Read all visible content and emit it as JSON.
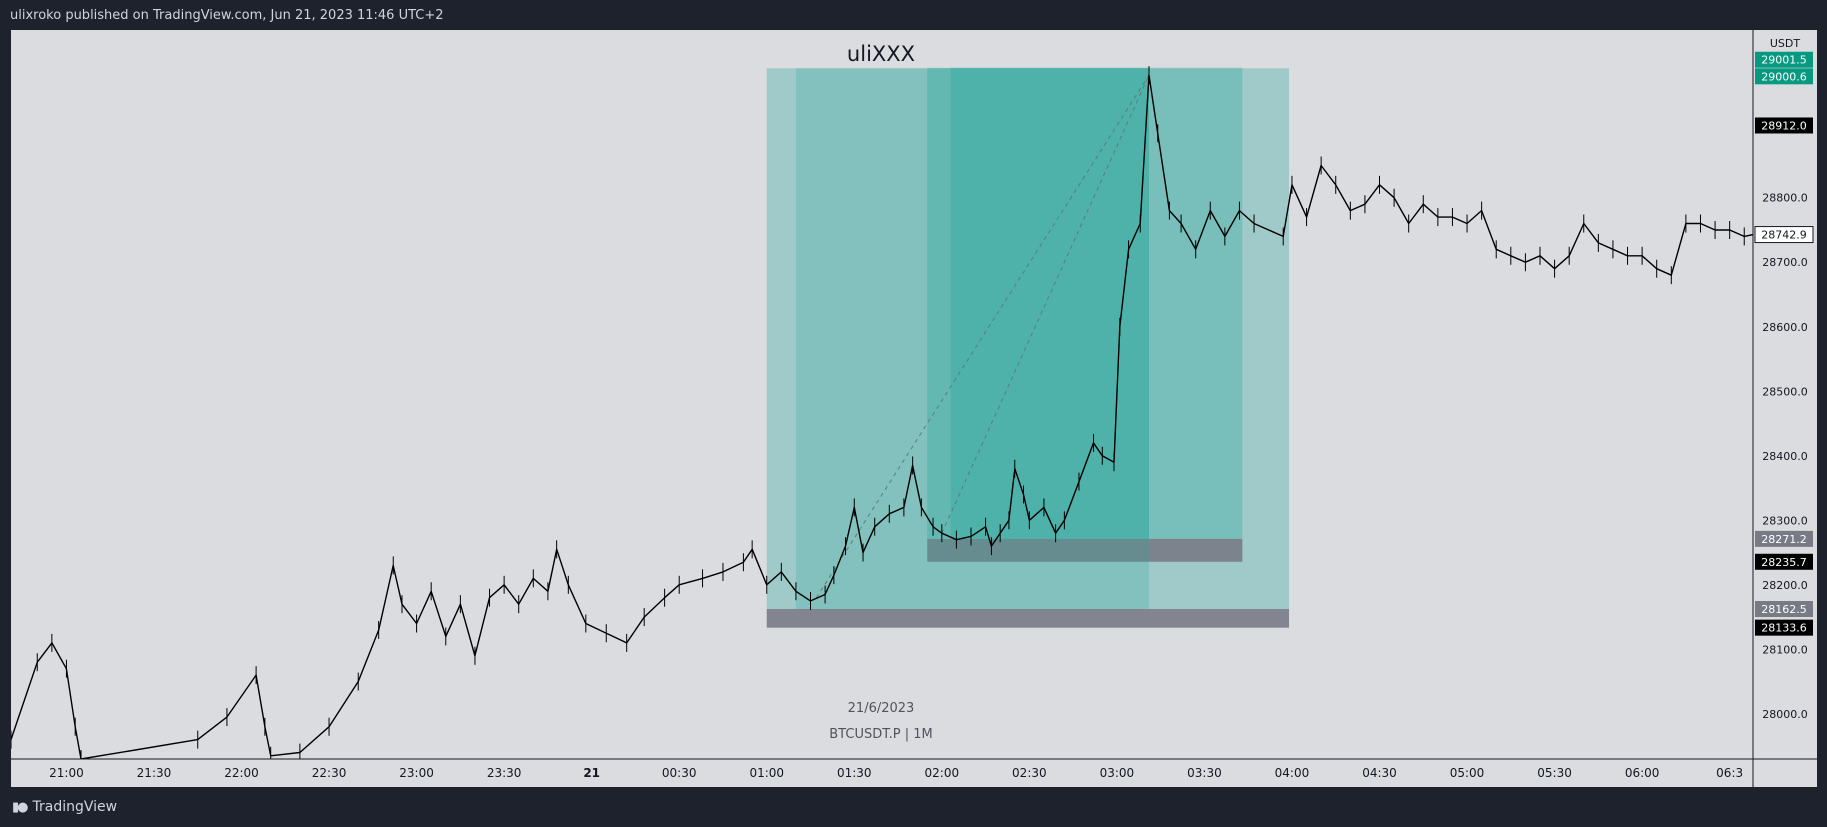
{
  "header": {
    "published": "ulixroko published on TradingView.com, Jun 21, 2023 11:46 UTC+2"
  },
  "footer": {
    "brand": "TradingView",
    "logo_icon": "tradingview-logo-icon"
  },
  "overlay": {
    "watermark": "uliXXX",
    "date_label": "21/6/2023",
    "symbol_label": "BTCUSDT.P | 1M"
  },
  "colors": {
    "background": "#dbdcdf",
    "candle": "#000000",
    "profit_zone": "#26a69a",
    "stop_zone": "#787b86",
    "chrome": "#1e222d",
    "tp_label": "#089981"
  },
  "price_axis": {
    "currency": "USDT",
    "ticks": [
      "28000.0",
      "28100.0",
      "28200.0",
      "28300.0",
      "28400.0",
      "28500.0",
      "28600.0",
      "28700.0",
      "28800.0"
    ],
    "badges": [
      {
        "text": "29001.5",
        "price": 29001.5,
        "style": "green"
      },
      {
        "text": "29000.6",
        "price": 29000.6,
        "style": "green"
      },
      {
        "text": "28912.0",
        "price": 28912.0,
        "style": "black"
      },
      {
        "text": "28742.9",
        "price": 28742.9,
        "style": "white"
      },
      {
        "text": "28271.2",
        "price": 28271.2,
        "style": "gray"
      },
      {
        "text": "28235.7",
        "price": 28235.7,
        "style": "black"
      },
      {
        "text": "28162.5",
        "price": 28162.5,
        "style": "gray"
      },
      {
        "text": "28133.6",
        "price": 28133.6,
        "style": "black"
      }
    ]
  },
  "chart_data": {
    "type": "candlestick",
    "xlabel": "",
    "ylabel": "",
    "x_ticks": [
      "21:00",
      "21:30",
      "22:00",
      "22:30",
      "23:00",
      "23:30",
      "21",
      "00:30",
      "01:00",
      "01:30",
      "02:00",
      "02:30",
      "03:00",
      "03:30",
      "04:00",
      "04:30",
      "05:00",
      "05:30",
      "06:00",
      "06:3"
    ],
    "x_range": [
      "20:41",
      "06:38"
    ],
    "ylim": [
      27930,
      29060
    ],
    "series": [
      {
        "values": [
          [
            "20:41",
            27960
          ],
          [
            "20:50",
            28080
          ],
          [
            "20:55",
            28110
          ],
          [
            "21:00",
            28070
          ],
          [
            "21:03",
            27980
          ],
          [
            "21:05",
            27930
          ],
          [
            "21:45",
            27960
          ],
          [
            "21:55",
            27995
          ],
          [
            "22:05",
            28060
          ],
          [
            "22:08",
            27980
          ],
          [
            "22:10",
            27935
          ],
          [
            "22:20",
            27940
          ],
          [
            "22:30",
            27980
          ],
          [
            "22:40",
            28050
          ],
          [
            "22:47",
            28130
          ],
          [
            "22:52",
            28230
          ],
          [
            "22:55",
            28170
          ],
          [
            "23:00",
            28140
          ],
          [
            "23:05",
            28190
          ],
          [
            "23:10",
            28120
          ],
          [
            "23:15",
            28170
          ],
          [
            "23:20",
            28090
          ],
          [
            "23:25",
            28180
          ],
          [
            "23:30",
            28200
          ],
          [
            "23:35",
            28170
          ],
          [
            "23:40",
            28210
          ],
          [
            "23:45",
            28190
          ],
          [
            "23:48",
            28255
          ],
          [
            "23:52",
            28200
          ],
          [
            "23:58",
            28140
          ],
          [
            "00:05",
            28125
          ],
          [
            "00:12",
            28110
          ],
          [
            "00:18",
            28150
          ],
          [
            "00:25",
            28180
          ],
          [
            "00:30",
            28200
          ],
          [
            "00:38",
            28210
          ],
          [
            "00:45",
            28220
          ],
          [
            "00:52",
            28235
          ],
          [
            "00:55",
            28255
          ],
          [
            "01:00",
            28200
          ],
          [
            "01:05",
            28220
          ],
          [
            "01:10",
            28190
          ],
          [
            "01:15",
            28175
          ],
          [
            "01:20",
            28185
          ],
          [
            "01:23",
            28215
          ],
          [
            "01:27",
            28260
          ],
          [
            "01:30",
            28320
          ],
          [
            "01:33",
            28250
          ],
          [
            "01:37",
            28290
          ],
          [
            "01:42",
            28310
          ],
          [
            "01:47",
            28320
          ],
          [
            "01:50",
            28385
          ],
          [
            "01:53",
            28320
          ],
          [
            "01:57",
            28290
          ],
          [
            "02:00",
            28280
          ],
          [
            "02:05",
            28270
          ],
          [
            "02:10",
            28275
          ],
          [
            "02:15",
            28290
          ],
          [
            "02:17",
            28260
          ],
          [
            "02:20",
            28280
          ],
          [
            "02:23",
            28300
          ],
          [
            "02:25",
            28380
          ],
          [
            "02:28",
            28340
          ],
          [
            "02:30",
            28300
          ],
          [
            "02:35",
            28320
          ],
          [
            "02:39",
            28280
          ],
          [
            "02:42",
            28300
          ],
          [
            "02:47",
            28360
          ],
          [
            "02:52",
            28420
          ],
          [
            "02:55",
            28400
          ],
          [
            "02:59",
            28390
          ],
          [
            "03:01",
            28600
          ],
          [
            "03:04",
            28720
          ],
          [
            "03:08",
            28760
          ],
          [
            "03:11",
            28990
          ],
          [
            "03:14",
            28900
          ],
          [
            "03:18",
            28780
          ],
          [
            "03:22",
            28760
          ],
          [
            "03:27",
            28720
          ],
          [
            "03:32",
            28780
          ],
          [
            "03:37",
            28740
          ],
          [
            "03:42",
            28780
          ],
          [
            "03:47",
            28760
          ],
          [
            "03:57",
            28740
          ],
          [
            "04:00",
            28820
          ],
          [
            "04:05",
            28770
          ],
          [
            "04:10",
            28850
          ],
          [
            "04:15",
            28820
          ],
          [
            "04:20",
            28780
          ],
          [
            "04:25",
            28790
          ],
          [
            "04:30",
            28820
          ],
          [
            "04:35",
            28800
          ],
          [
            "04:40",
            28760
          ],
          [
            "04:45",
            28790
          ],
          [
            "04:50",
            28770
          ],
          [
            "04:55",
            28770
          ],
          [
            "05:00",
            28760
          ],
          [
            "05:05",
            28780
          ],
          [
            "05:10",
            28720
          ],
          [
            "05:15",
            28710
          ],
          [
            "05:20",
            28700
          ],
          [
            "05:25",
            28710
          ],
          [
            "05:30",
            28690
          ],
          [
            "05:35",
            28710
          ],
          [
            "05:40",
            28760
          ],
          [
            "05:45",
            28730
          ],
          [
            "05:50",
            28720
          ],
          [
            "05:55",
            28710
          ],
          [
            "06:00",
            28710
          ],
          [
            "06:05",
            28690
          ],
          [
            "06:10",
            28680
          ],
          [
            "06:15",
            28760
          ],
          [
            "06:20",
            28760
          ],
          [
            "06:25",
            28750
          ],
          [
            "06:30",
            28750
          ],
          [
            "06:35",
            28740
          ],
          [
            "06:38",
            28742.9
          ]
        ]
      }
    ],
    "annotations": [
      {
        "type": "long_position",
        "start": "01:00",
        "end": "03:59",
        "entry": 28162.5,
        "stop": 28133.6,
        "target": 29000.6
      },
      {
        "type": "long_position",
        "start": "01:55",
        "end": "03:43",
        "entry": 28271.2,
        "stop": 28235.7,
        "target": 29001.5
      }
    ],
    "grid": false
  }
}
